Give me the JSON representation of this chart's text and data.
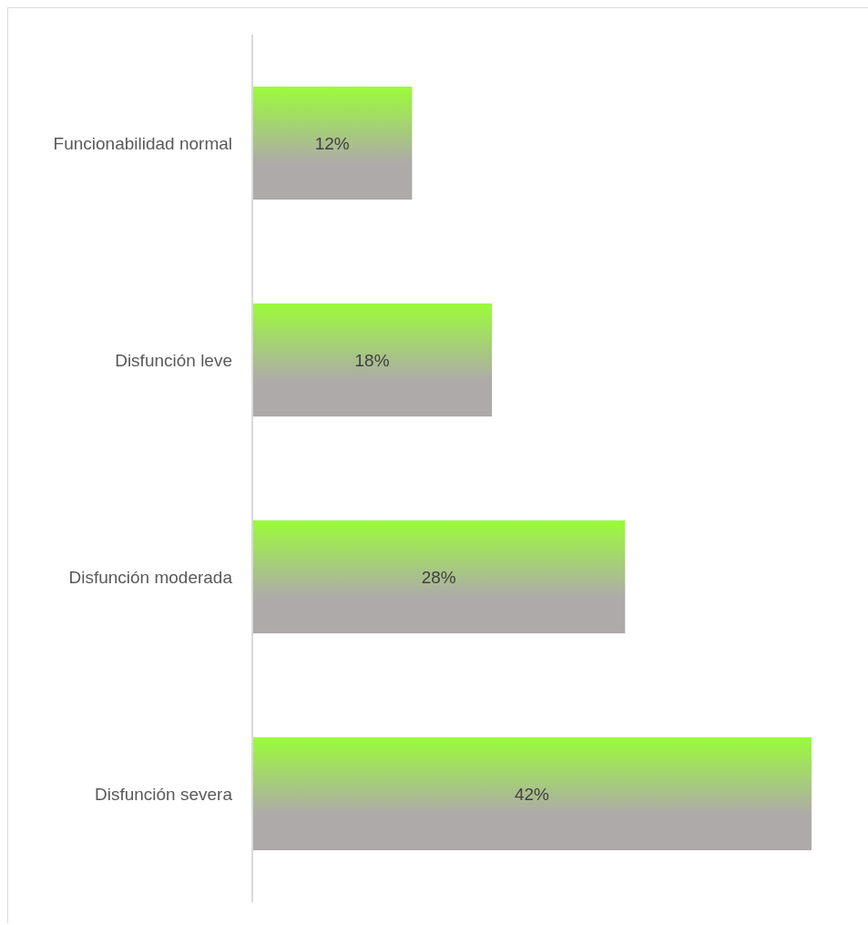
{
  "chart_data": {
    "type": "bar",
    "orientation": "horizontal",
    "categories": [
      "Funcionabilidad normal",
      "Disfunción leve",
      "Disfunción moderada",
      "Disfunción severa"
    ],
    "values": [
      12,
      18,
      28,
      42
    ],
    "color": "#9bfb3a",
    "value_labels": [
      "12%",
      "18%",
      "28%",
      "42%"
    ]
  }
}
